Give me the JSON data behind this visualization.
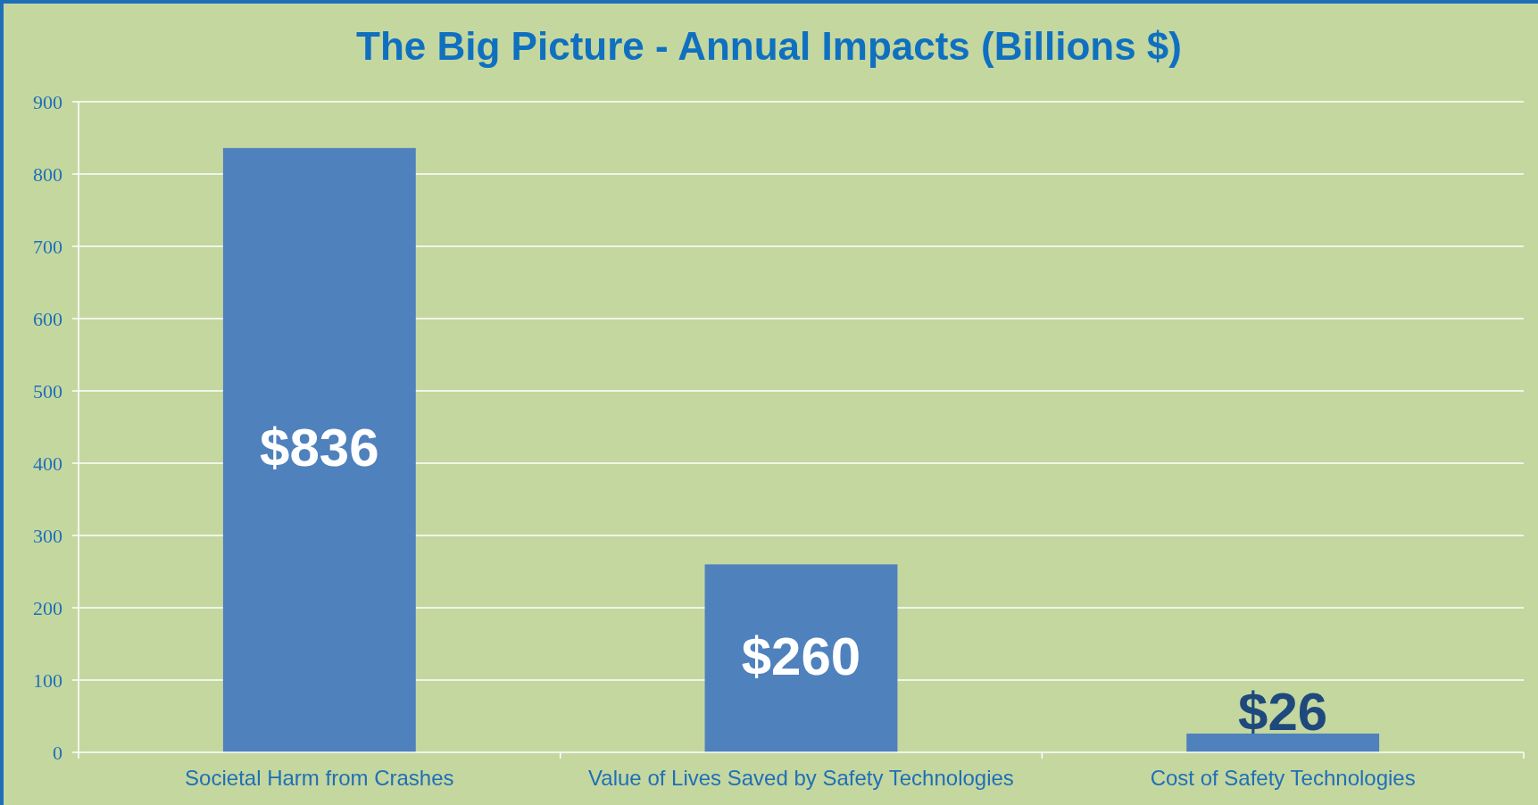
{
  "chart_data": {
    "type": "bar",
    "title": "The Big Picture - Annual Impacts (Billions $)",
    "categories": [
      "Societal Harm from Crashes",
      "Value of Lives Saved by Safety Technologies",
      "Cost of Safety Technologies"
    ],
    "values": [
      836,
      260,
      26
    ],
    "color": "#4f81bd",
    "value_labels": [
      "$836",
      "$260",
      "$26"
    ],
    "ylim": [
      0,
      900
    ],
    "yticks": [
      0,
      100,
      200,
      300,
      400,
      500,
      600,
      700,
      800,
      900
    ],
    "grid": "y"
  }
}
